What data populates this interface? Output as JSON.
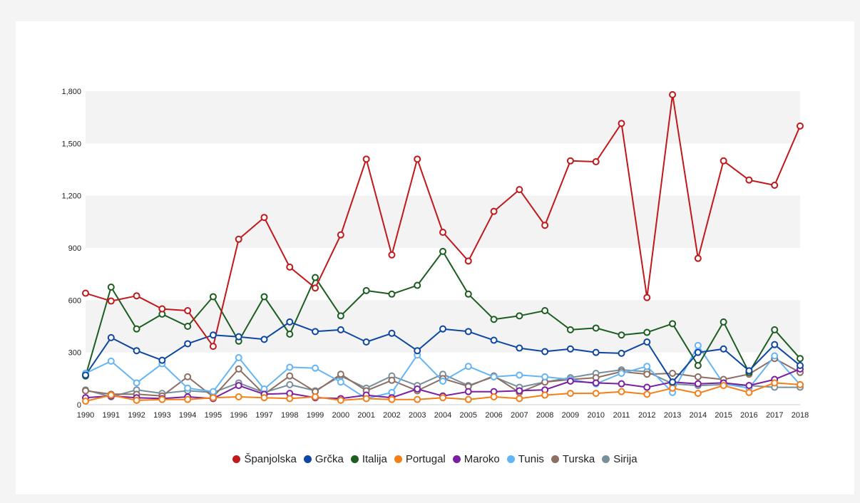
{
  "chart_data": {
    "type": "line",
    "title": "",
    "xlabel": "",
    "ylabel": "",
    "ylim": [
      0,
      1800
    ],
    "yticks": [
      0,
      300,
      600,
      900,
      1200,
      1500,
      1800
    ],
    "ytick_labels": [
      "0",
      "300",
      "600",
      "900",
      "1,200",
      "1,500",
      "1,800"
    ],
    "grid": "alternating horizontal bands",
    "legend_position": "bottom-center",
    "categories": [
      "1990",
      "1991",
      "1992",
      "1993",
      "1994",
      "1995",
      "1996",
      "1997",
      "1998",
      "1999",
      "2000",
      "2001",
      "2002",
      "2003",
      "2004",
      "2005",
      "2006",
      "2007",
      "2008",
      "2009",
      "2010",
      "2011",
      "2012",
      "2013",
      "2014",
      "2015",
      "2016",
      "2017",
      "2018"
    ],
    "series": [
      {
        "name": "Španjolska",
        "color": "#c0181b",
        "values": [
          640,
          595,
          625,
          550,
          540,
          335,
          950,
          1075,
          790,
          670,
          975,
          1410,
          860,
          1410,
          990,
          825,
          1110,
          1235,
          1030,
          1400,
          1395,
          1615,
          615,
          1780,
          840,
          1400,
          1290,
          1260,
          1600
        ]
      },
      {
        "name": "Grčka",
        "color": "#0d47a1",
        "values": [
          170,
          385,
          310,
          255,
          350,
          400,
          390,
          375,
          475,
          420,
          430,
          360,
          410,
          310,
          435,
          420,
          370,
          325,
          305,
          320,
          300,
          295,
          360,
          130,
          300,
          320,
          195,
          345,
          225
        ]
      },
      {
        "name": "Italija",
        "color": "#1b5e20",
        "values": [
          165,
          675,
          435,
          520,
          450,
          620,
          365,
          620,
          405,
          730,
          510,
          655,
          635,
          685,
          880,
          635,
          490,
          510,
          540,
          430,
          440,
          400,
          415,
          465,
          225,
          475,
          185,
          430,
          265
        ]
      },
      {
        "name": "Portugal",
        "color": "#f57f17",
        "values": [
          20,
          55,
          25,
          30,
          30,
          40,
          45,
          40,
          35,
          45,
          25,
          35,
          30,
          30,
          40,
          30,
          45,
          35,
          55,
          65,
          65,
          75,
          60,
          95,
          65,
          110,
          70,
          125,
          115
        ]
      },
      {
        "name": "Maroko",
        "color": "#7b1fa2",
        "values": [
          40,
          50,
          40,
          35,
          45,
          35,
          110,
          60,
          65,
          40,
          35,
          55,
          40,
          90,
          50,
          75,
          75,
          80,
          85,
          135,
          125,
          120,
          100,
          130,
          120,
          125,
          110,
          145,
          205
        ]
      },
      {
        "name": "Tunis",
        "color": "#64b5f6",
        "values": [
          180,
          250,
          125,
          235,
          95,
          75,
          270,
          90,
          215,
          210,
          130,
          35,
          70,
          285,
          135,
          220,
          160,
          170,
          160,
          145,
          120,
          180,
          220,
          70,
          340,
          120,
          95,
          280,
          115
        ]
      },
      {
        "name": "Turska",
        "color": "#8d6e63",
        "values": [
          80,
          60,
          60,
          50,
          160,
          45,
          205,
          60,
          165,
          75,
          175,
          80,
          140,
          80,
          150,
          105,
          165,
          70,
          130,
          145,
          155,
          190,
          175,
          180,
          160,
          145,
          175,
          265,
          185
        ]
      },
      {
        "name": "Sirija",
        "color": "#78909c",
        "values": [
          85,
          45,
          85,
          65,
          80,
          70,
          125,
          70,
          115,
          80,
          165,
          95,
          165,
          110,
          175,
          110,
          160,
          100,
          130,
          155,
          180,
          200,
          190,
          120,
          110,
          115,
          110,
          100,
          100
        ]
      }
    ]
  }
}
